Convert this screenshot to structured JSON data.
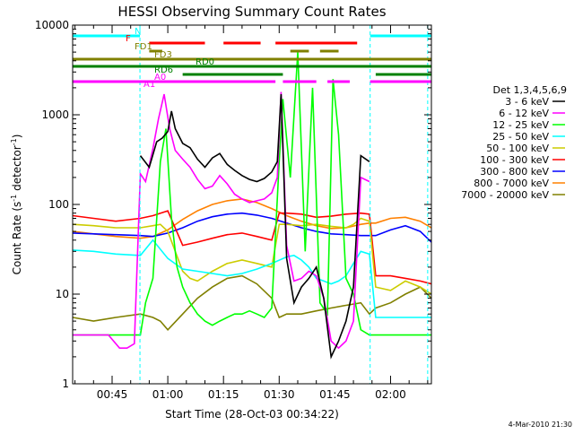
{
  "chart_data": {
    "type": "line",
    "title": "HESSI Observing Summary Count Rates",
    "xlabel": "Start Time (28-Oct-03 00:34:22)",
    "ylabel_main": "Count Rate (s",
    "ylabel_sup1": "-1",
    "ylabel_mid": " detector",
    "ylabel_sup2": "-1",
    "ylabel_end": ")",
    "footer": "4-Mar-2010 21:30",
    "x_unit": "minutes since 00:00 UT, 28-Oct-03",
    "xlim": [
      34.37,
      131
    ],
    "ylim": [
      1,
      10000
    ],
    "yscale": "log",
    "x_ticks": [
      {
        "value": 45,
        "label": "00:45"
      },
      {
        "value": 60,
        "label": "01:00"
      },
      {
        "value": 75,
        "label": "01:15"
      },
      {
        "value": 90,
        "label": "01:30"
      },
      {
        "value": 105,
        "label": "01:45"
      },
      {
        "value": 120,
        "label": "02:00"
      }
    ],
    "y_ticks": [
      {
        "value": 1,
        "label": "1"
      },
      {
        "value": 10,
        "label": "10"
      },
      {
        "value": 100,
        "label": "100"
      },
      {
        "value": 1000,
        "label": "1000"
      },
      {
        "value": 10000,
        "label": "10000"
      }
    ],
    "night_boundaries": [
      52.5,
      114.5,
      130
    ],
    "legend_title": "Det 1,3,4,5,6,9",
    "series": [
      {
        "name": "3 - 6 keV",
        "color": "#000000",
        "x": [
          52.6,
          55,
          57,
          58.5,
          60,
          61,
          62,
          64,
          66,
          68,
          70,
          72,
          74,
          76,
          78,
          80,
          82,
          84,
          86,
          88,
          89.5,
          90.5,
          92,
          94,
          96,
          98,
          100,
          102,
          104,
          106,
          108,
          110,
          112,
          114.3
        ],
        "values": [
          350,
          260,
          500,
          550,
          650,
          1100,
          700,
          480,
          430,
          320,
          260,
          330,
          370,
          280,
          240,
          210,
          190,
          180,
          195,
          230,
          300,
          1700,
          25,
          8,
          12,
          15,
          20,
          9,
          2,
          3,
          5,
          12,
          350,
          300
        ]
      },
      {
        "name": "6 - 12 keV",
        "color": "#ff00ff",
        "x": [
          34.4,
          44,
          47,
          49,
          51,
          52.6,
          54,
          56,
          57.5,
          59,
          60.5,
          62,
          64,
          66,
          68,
          70,
          72,
          74,
          76,
          78,
          80,
          82,
          84,
          86,
          88,
          89.5,
          90.5,
          92,
          94,
          96,
          98,
          100,
          102,
          104,
          106,
          108,
          110,
          112,
          114.3
        ],
        "values": [
          3.5,
          3.5,
          2.5,
          2.5,
          2.8,
          220,
          180,
          420,
          900,
          1700,
          700,
          400,
          320,
          260,
          190,
          150,
          160,
          210,
          170,
          130,
          115,
          105,
          110,
          115,
          135,
          200,
          1800,
          35,
          14,
          15,
          18,
          16,
          9,
          3,
          2.5,
          3,
          5,
          200,
          180
        ]
      },
      {
        "name": "12 - 25 keV",
        "color": "#00ff00",
        "x": [
          34.4,
          44,
          50,
          52.6,
          54,
          56,
          58,
          59.5,
          61,
          62.5,
          64,
          66,
          68,
          70,
          72,
          74,
          76,
          78,
          80,
          82,
          84,
          86,
          88,
          90,
          91,
          93,
          95,
          97,
          99,
          101,
          103,
          104.5,
          106,
          108,
          110,
          112,
          114.3,
          116,
          120,
          126,
          131
        ],
        "values": [
          3.5,
          3.5,
          3.5,
          3.5,
          8,
          15,
          300,
          700,
          70,
          20,
          12,
          8,
          6,
          5,
          4.5,
          5,
          5.5,
          6,
          6,
          6.5,
          6,
          5.5,
          7,
          300,
          1500,
          200,
          5000,
          30,
          2000,
          8,
          6,
          2500,
          600,
          15,
          10,
          4,
          3.5,
          3.5,
          3.5,
          3.5,
          3.5
        ]
      },
      {
        "name": "25 - 50 keV",
        "color": "#00ffff",
        "x": [
          34.4,
          40,
          46,
          52.6,
          56,
          60,
          64,
          68,
          72,
          76,
          80,
          84,
          88,
          92,
          94,
          96,
          98,
          100,
          102,
          104,
          106,
          108,
          110,
          112,
          114.3,
          116,
          120,
          126,
          131
        ],
        "values": [
          31,
          30,
          28,
          27,
          40,
          25,
          19,
          18,
          17,
          16,
          17,
          19,
          22,
          26,
          27,
          24,
          20,
          15,
          14,
          13,
          14,
          16,
          22,
          30,
          28,
          5.5,
          5.5,
          5.5,
          5.5
        ]
      },
      {
        "name": "50 - 100 keV",
        "color": "#cccc00",
        "x": [
          34.4,
          40,
          46,
          52.6,
          56,
          58,
          60,
          62,
          64,
          66,
          68,
          72,
          76,
          80,
          84,
          88,
          90,
          92,
          96,
          100,
          104,
          108,
          110,
          112,
          114.3,
          116,
          120,
          124,
          128,
          131
        ],
        "values": [
          60,
          58,
          55,
          55,
          58,
          60,
          50,
          30,
          18,
          15,
          14,
          18,
          22,
          24,
          22,
          20,
          60,
          60,
          58,
          60,
          57,
          55,
          60,
          70,
          65,
          12,
          11,
          14,
          12,
          10
        ]
      },
      {
        "name": "100 - 300 keV",
        "color": "#ff0000",
        "x": [
          34.4,
          40,
          46,
          52.6,
          56,
          60,
          64,
          68,
          72,
          76,
          80,
          84,
          88,
          90,
          92,
          96,
          100,
          104,
          108,
          112,
          114.3,
          116,
          120,
          124,
          128,
          131
        ],
        "values": [
          75,
          70,
          65,
          70,
          75,
          85,
          35,
          38,
          42,
          46,
          48,
          44,
          40,
          80,
          80,
          78,
          72,
          74,
          78,
          80,
          78,
          16,
          16,
          15,
          14,
          13
        ]
      },
      {
        "name": "300 - 800 keV",
        "color": "#0000ff",
        "x": [
          34.4,
          40,
          46,
          52.6,
          56,
          60,
          64,
          68,
          72,
          76,
          80,
          84,
          88,
          92,
          96,
          100,
          104,
          108,
          112,
          114.3,
          116,
          120,
          124,
          128,
          131
        ],
        "values": [
          48,
          47,
          46,
          45,
          44,
          48,
          55,
          65,
          73,
          78,
          80,
          76,
          70,
          62,
          55,
          50,
          47,
          46,
          45,
          45,
          45,
          52,
          58,
          50,
          38
        ]
      },
      {
        "name": "800 - 7000 keV",
        "color": "#ff8000",
        "x": [
          34.4,
          40,
          46,
          52.6,
          56,
          60,
          64,
          68,
          72,
          76,
          80,
          84,
          88,
          92,
          96,
          100,
          104,
          108,
          112,
          114.3,
          116,
          120,
          124,
          128,
          131
        ],
        "values": [
          50,
          47,
          44,
          42,
          44,
          52,
          68,
          85,
          100,
          110,
          115,
          105,
          90,
          75,
          65,
          58,
          54,
          55,
          60,
          62,
          62,
          70,
          72,
          65,
          55
        ]
      },
      {
        "name": "7000 - 20000 keV",
        "color": "#808000",
        "x": [
          34.4,
          40,
          46,
          52.6,
          56,
          58,
          60,
          64,
          68,
          72,
          76,
          80,
          84,
          88,
          90,
          92,
          96,
          100,
          104,
          108,
          112,
          114.3,
          116,
          120,
          124,
          128,
          131
        ],
        "values": [
          5.5,
          5.0,
          5.5,
          6.0,
          5.5,
          5.0,
          4.0,
          6,
          9,
          12,
          15,
          16,
          13,
          9,
          5.5,
          6,
          6,
          6.5,
          7,
          7.5,
          8,
          6,
          7,
          8,
          10,
          12,
          9
        ]
      }
    ],
    "flag_bars": [
      {
        "label": "N",
        "color": "#00ffff",
        "segments": [
          [
            34.4,
            52.5
          ],
          [
            114.5,
            131
          ]
        ]
      },
      {
        "label": "F",
        "color": "#ff0000",
        "segments": [
          [
            55,
            70
          ],
          [
            75,
            85
          ],
          [
            89,
            111
          ]
        ]
      },
      {
        "label": "FD1",
        "color": "#808000",
        "segments": [
          [
            55,
            58.5
          ],
          [
            93,
            98
          ],
          [
            101,
            106
          ]
        ]
      },
      {
        "label": "FD3",
        "color": "#808000",
        "segments": [
          [
            34.4,
            131
          ]
        ]
      },
      {
        "label": "RD0",
        "color": "#008000",
        "segments": [
          [
            34.4,
            131
          ]
        ]
      },
      {
        "label": "RD6",
        "color": "#008000",
        "segments": [
          [
            64,
            91
          ],
          [
            116,
            131
          ]
        ]
      },
      {
        "label": "A0",
        "color": "#ff00ff",
        "segments": [
          [
            34.4,
            89
          ],
          [
            91,
            100
          ],
          [
            103,
            109
          ],
          [
            114.5,
            131
          ]
        ]
      },
      {
        "label": "A1",
        "color": "#ff00ff",
        "segments": []
      }
    ]
  }
}
